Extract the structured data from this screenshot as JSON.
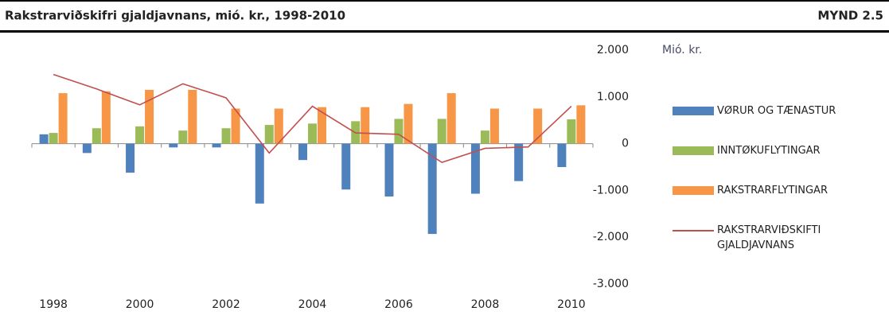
{
  "chart_data": {
    "type": "bar",
    "title": "Rakstrarviðskifri gjaldjavnans, mió. kr., 1998-2010",
    "figure_label": "MYND 2.5",
    "y_axis_label": "Mió. kr.",
    "categories": [
      "1998",
      null,
      "2000",
      null,
      "2002",
      null,
      "2004",
      null,
      "2006",
      null,
      "2008",
      null,
      "2010"
    ],
    "series": [
      {
        "name": "VØRUR OG TÆNASTUR",
        "type": "bar",
        "color": "#4f81bd",
        "values": [
          200,
          -200,
          -620,
          -80,
          -80,
          -1280,
          -350,
          -980,
          -1130,
          -1930,
          -1070,
          -800,
          -500
        ]
      },
      {
        "name": "INNTØKUFLYTINGAR",
        "type": "bar",
        "color": "#9bbb59",
        "values": [
          230,
          330,
          370,
          280,
          330,
          400,
          430,
          480,
          530,
          530,
          280,
          0,
          520
        ]
      },
      {
        "name": "RAKSTRARFLYTINGAR",
        "type": "bar",
        "color": "#f79646",
        "values": [
          1080,
          1120,
          1150,
          1150,
          750,
          750,
          780,
          780,
          850,
          1080,
          750,
          750,
          820
        ]
      },
      {
        "name": "RAKSTRARVIÐSKIFTI GJALDJAVNANS",
        "type": "line",
        "color": "#c0504d",
        "values": [
          1480,
          1170,
          830,
          1280,
          980,
          -200,
          800,
          230,
          200,
          -400,
          -100,
          -70,
          800
        ]
      }
    ],
    "ylim": [
      -3000,
      2000
    ],
    "yticks": [
      {
        "value": -3000,
        "label": "-3.000"
      },
      {
        "value": -2000,
        "label": "-2.000"
      },
      {
        "value": -1000,
        "label": "-1.000"
      },
      0,
      {
        "value": 1000,
        "label": "1.000"
      },
      {
        "value": 2000,
        "label": "2.000"
      }
    ],
    "grid": false,
    "legend": "right"
  }
}
